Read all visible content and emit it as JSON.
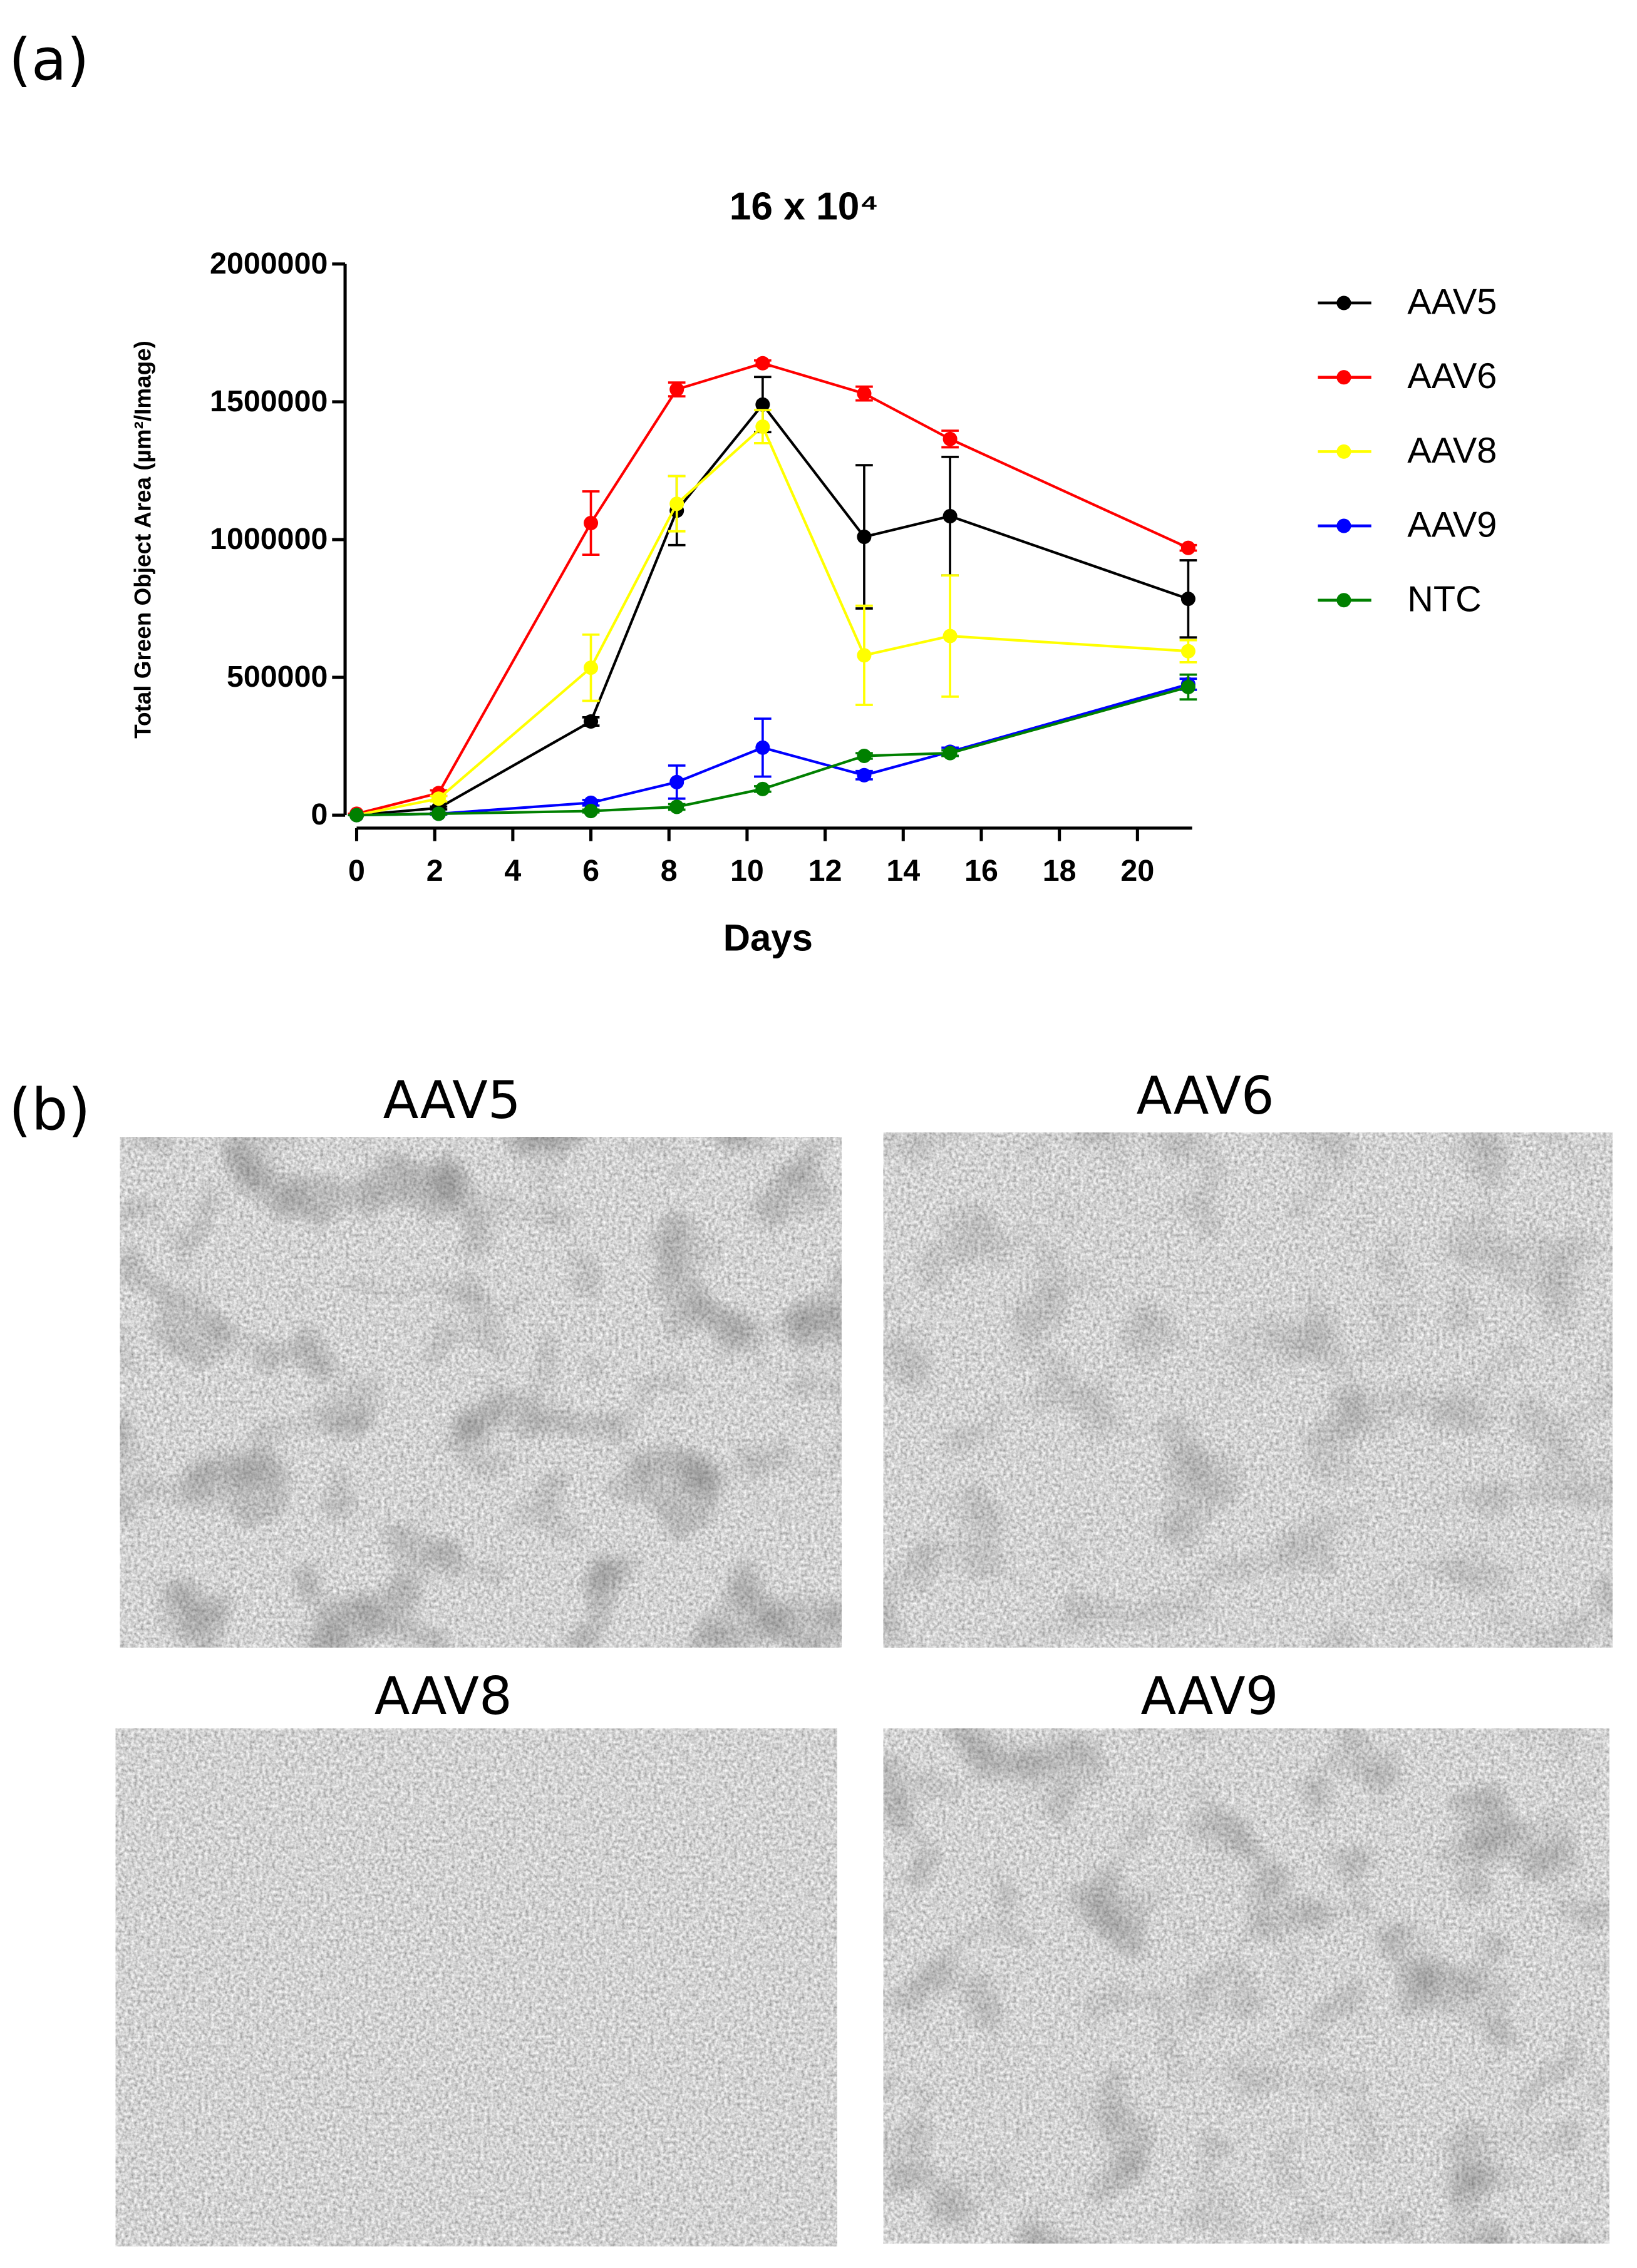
{
  "panel_labels": [
    "(a)",
    "(b)"
  ],
  "chart_data": {
    "type": "line",
    "title": "16 x 10⁴",
    "x_label": "Days",
    "y_label": "Total Green Object Area (µm²/Image)",
    "x": [
      0,
      2.1,
      6,
      8.2,
      10.4,
      13,
      15.2,
      21.3
    ],
    "series": [
      {
        "name": "AAV5",
        "color": "#000000",
        "values": [
          0,
          26000,
          340000,
          1105000,
          1490000,
          1010000,
          1085000,
          785000
        ],
        "errors": [
          0,
          5000,
          15000,
          125000,
          100000,
          260000,
          215000,
          140000
        ]
      },
      {
        "name": "AAV6",
        "color": "#ff0000",
        "values": [
          5000,
          80000,
          1060000,
          1545000,
          1640000,
          1530000,
          1365000,
          970000
        ],
        "errors": [
          0,
          10000,
          115000,
          25000,
          10000,
          25000,
          30000,
          10000
        ]
      },
      {
        "name": "AAV8",
        "color": "#ffff00",
        "values": [
          0,
          60000,
          535000,
          1130000,
          1410000,
          580000,
          650000,
          595000
        ],
        "errors": [
          0,
          10000,
          120000,
          100000,
          60000,
          180000,
          220000,
          40000
        ]
      },
      {
        "name": "AAV9",
        "color": "#0000ff",
        "values": [
          0,
          5000,
          45000,
          120000,
          245000,
          145000,
          230000,
          475000
        ],
        "errors": [
          0,
          3000,
          10000,
          60000,
          105000,
          15000,
          15000,
          20000
        ]
      },
      {
        "name": "NTC",
        "color": "#008000",
        "values": [
          0,
          5000,
          15000,
          30000,
          95000,
          215000,
          225000,
          465000
        ],
        "errors": [
          0,
          2000,
          5000,
          10000,
          10000,
          10000,
          10000,
          45000
        ]
      }
    ],
    "xlim": [
      0,
      21.4
    ],
    "xticks": [
      0,
      2,
      4,
      6,
      8,
      10,
      12,
      14,
      16,
      18,
      20
    ],
    "ylim": [
      0,
      2000000
    ],
    "yticks": [
      0,
      500000,
      1000000,
      1500000,
      2000000
    ],
    "legend": "right",
    "grid": false
  },
  "images": [
    {
      "title": "AAV5"
    },
    {
      "title": "AAV6"
    },
    {
      "title": "AAV8"
    },
    {
      "title": "AAV9"
    }
  ]
}
